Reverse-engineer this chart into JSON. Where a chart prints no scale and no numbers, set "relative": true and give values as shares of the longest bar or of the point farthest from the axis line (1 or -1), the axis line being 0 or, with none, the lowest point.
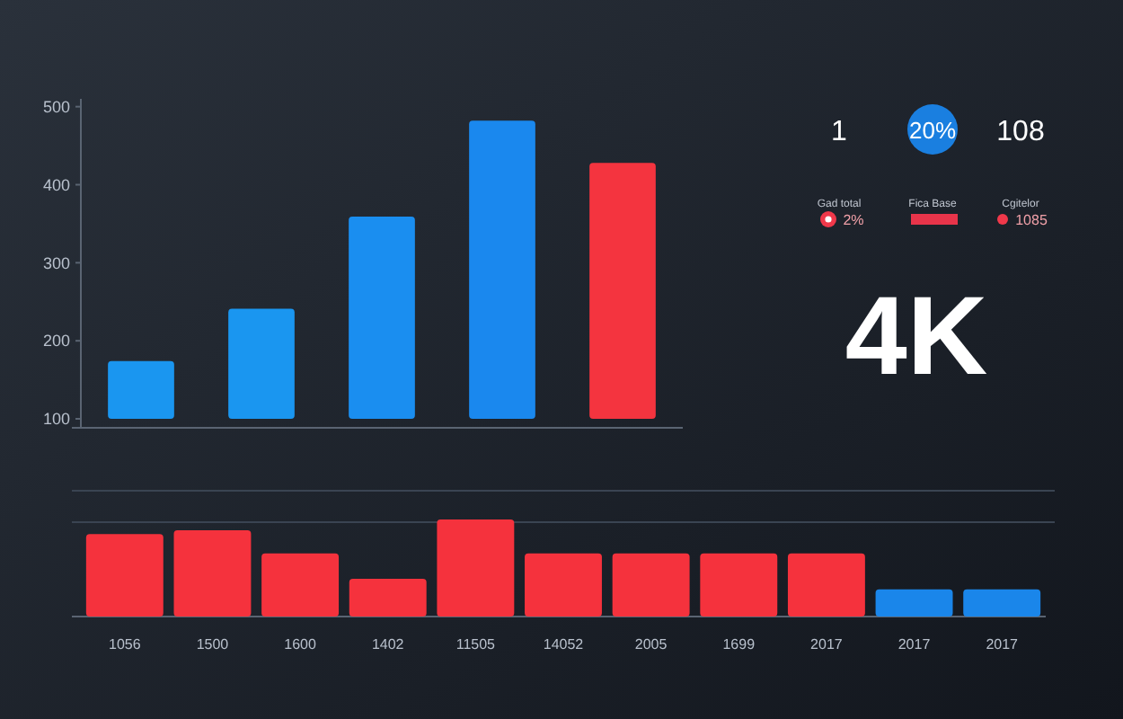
{
  "chart_data": [
    {
      "type": "bar",
      "categories": [
        null,
        null,
        null,
        null,
        null
      ],
      "values": [
        174,
        241,
        359,
        482,
        428
      ],
      "colors": [
        "#1a96f0",
        "#1a96f0",
        "#1a8ef0",
        "#1a88ee",
        "#f4343f"
      ],
      "ylim": [
        100,
        510
      ],
      "yticks": [
        100,
        200,
        300,
        400,
        500
      ],
      "tick_labels": "y"
    },
    {
      "type": "other",
      "annotations": [
        "1",
        "20%",
        "108",
        "Gad total",
        "Fica Base",
        "Cgitelor",
        "2%",
        "1085",
        "4K"
      ]
    },
    {
      "type": "bar",
      "relative": true,
      "categories": [
        "1056",
        "1500",
        "1600",
        "1402",
        "11505",
        "14052",
        "2005",
        "1699",
        "2017",
        "2017",
        "2017"
      ],
      "values": [
        0.85,
        0.89,
        0.65,
        0.39,
        1,
        0.65,
        0.65,
        0.65,
        0.65,
        0.28,
        0.28
      ],
      "colors": [
        "#f5323d",
        "#f5323d",
        "#f5323d",
        "#f5323d",
        "#f5323d",
        "#f5323d",
        "#f5323d",
        "#f5323d",
        "#f5323d",
        "#1a86ea",
        "#1a86ea"
      ]
    }
  ]
}
